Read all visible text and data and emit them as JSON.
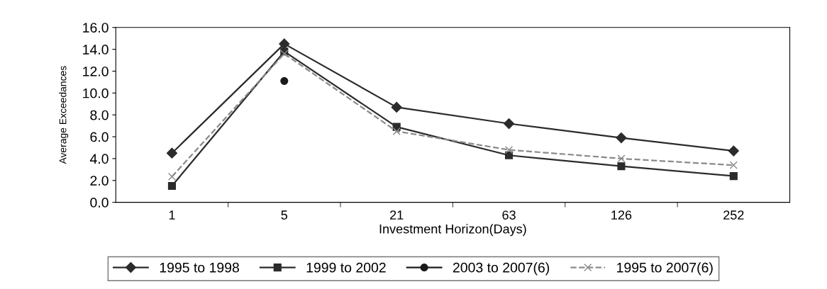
{
  "chart_data": {
    "type": "line",
    "xlabel": "Investment Horizon(Days)",
    "ylabel": "Average Exceedances",
    "categories": [
      "1",
      "5",
      "21",
      "63",
      "126",
      "252"
    ],
    "ylim": [
      0,
      16
    ],
    "yticks": [
      {
        "value": 0,
        "label": "0.0"
      },
      {
        "value": 2,
        "label": "2.0"
      },
      {
        "value": 4,
        "label": "4.0"
      },
      {
        "value": 6,
        "label": "6.0"
      },
      {
        "value": 8,
        "label": "8.0"
      },
      {
        "value": 10,
        "label": "10.0"
      },
      {
        "value": 12,
        "label": "12.0"
      },
      {
        "value": 14,
        "label": "14.0"
      },
      {
        "value": 16,
        "label": "16.0"
      }
    ],
    "grid": false,
    "legend": "bottom",
    "series": [
      {
        "name": "1995 to 1998",
        "color": "#2b2b2b",
        "marker": "diamond",
        "line_style": "solid",
        "values": [
          4.5,
          14.5,
          8.7,
          7.2,
          5.9,
          4.7
        ]
      },
      {
        "name": "1999 to 2002",
        "color": "#2b2b2b",
        "marker": "square",
        "line_style": "solid",
        "values": [
          1.5,
          13.8,
          6.9,
          4.3,
          3.3,
          2.4
        ]
      },
      {
        "name": "2003 to 2007(6)",
        "color": "#1a1a1a",
        "marker": "circle",
        "line_style": "solid",
        "values": [
          null,
          11.1,
          null,
          null,
          null,
          null
        ]
      },
      {
        "name": "1995 to 2007(6)",
        "color": "#8a8a8a",
        "marker": "cross",
        "line_style": "dashed",
        "values": [
          2.35,
          13.6,
          6.5,
          4.8,
          4.0,
          3.4
        ]
      }
    ]
  }
}
